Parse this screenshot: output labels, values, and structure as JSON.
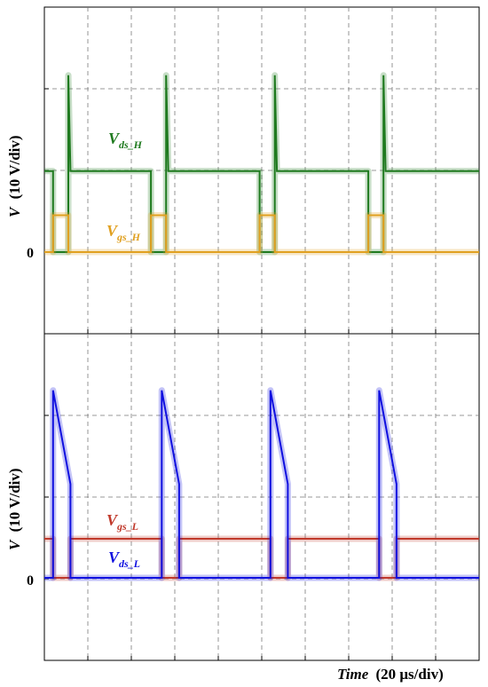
{
  "chart_data": [
    {
      "type": "line",
      "panel": "top",
      "ylabel": {
        "symbol": "V",
        "units": "(10 V/div)"
      },
      "zero_label": "0",
      "grid": "dashed",
      "x_divisions": 10,
      "y_divisions": 4,
      "x": [
        0,
        0.2,
        0.2,
        0.55,
        0.55,
        0.6,
        2.45,
        2.45,
        2.8,
        2.8,
        2.85,
        4.95,
        4.95,
        5.3,
        5.3,
        5.35,
        7.45,
        7.45,
        7.8,
        7.8,
        7.85,
        10
      ],
      "series": [
        {
          "name": "Vds_H",
          "label_main": "V",
          "label_sub": "ds_H",
          "color": "#1f7a1f",
          "values": [
            11,
            11,
            0,
            0,
            24,
            11,
            11,
            0,
            0,
            24,
            11,
            11,
            0,
            0,
            24,
            11,
            11,
            0,
            0,
            24,
            11,
            11
          ]
        },
        {
          "name": "Vgs_H",
          "label_main": "V",
          "label_sub": "gs_H",
          "color": "#e0a020",
          "values": [
            0,
            0,
            5,
            5,
            0,
            0,
            0,
            5,
            5,
            0,
            0,
            0,
            5,
            5,
            0,
            0,
            0,
            5,
            5,
            0,
            0,
            0
          ]
        }
      ]
    },
    {
      "type": "line",
      "panel": "bottom",
      "ylabel": {
        "symbol": "V",
        "units": "(10 V/div)"
      },
      "zero_label": "0",
      "grid": "dashed",
      "x_divisions": 10,
      "y_divisions": 4,
      "x": [
        0,
        0.2,
        0.2,
        0.6,
        0.6,
        2.7,
        2.7,
        3.1,
        3.1,
        5.2,
        5.2,
        5.6,
        5.6,
        7.7,
        7.7,
        8.1,
        8.1,
        10
      ],
      "series": [
        {
          "name": "Vgs_L",
          "label_main": "V",
          "label_sub": "gs_L",
          "color": "#c0392b",
          "values": [
            5,
            5,
            0,
            0,
            5,
            5,
            0,
            0,
            5,
            5,
            0,
            0,
            5,
            5,
            0,
            0,
            5,
            5
          ]
        },
        {
          "name": "Vds_L",
          "label_main": "V",
          "label_sub": "ds_L",
          "color": "#1010e0",
          "values": [
            0,
            0,
            24,
            12,
            0,
            0,
            24,
            12,
            0,
            0,
            24,
            12,
            0,
            0,
            24,
            12,
            0,
            0
          ]
        }
      ]
    }
  ],
  "xlabel": {
    "word": "Time",
    "units": "(20 μs/div)"
  }
}
